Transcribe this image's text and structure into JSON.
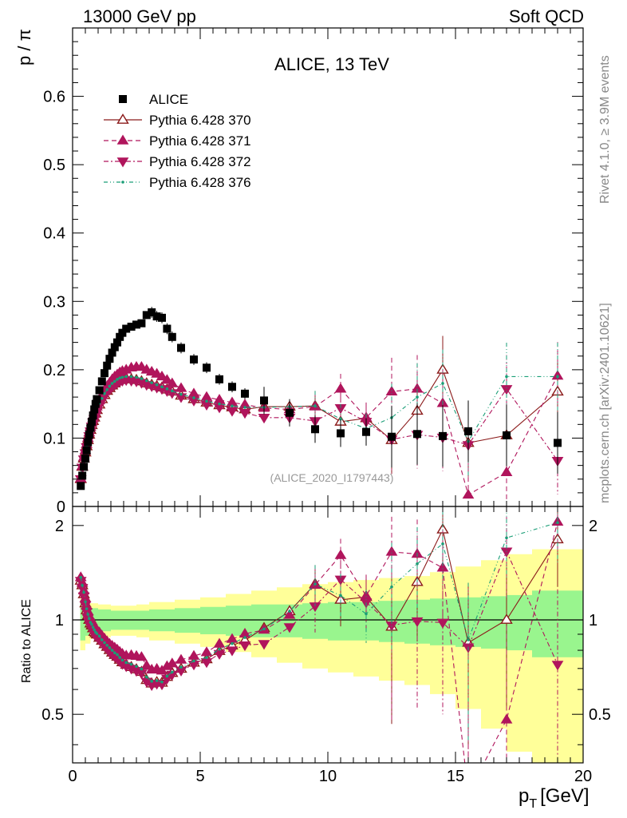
{
  "header": {
    "left": "13000 GeV pp",
    "right": "Soft QCD"
  },
  "side_labels": {
    "upper": "Rivet 4.1.0, ≥ 3.9M events",
    "lower": "mcplots.cern.ch [arXiv:2401.10621]"
  },
  "chart_data": {
    "type": "scatter",
    "title": "ALICE, 13 TeV",
    "analysis_id": "(ALICE_2020_I1797443)",
    "ylabel_top": "p / π",
    "ylabel_bottom": "Ratio to ALICE",
    "xlabel": "p_T [GeV]",
    "xlabel_main": "p",
    "xlabel_sub": "T",
    "xlabel_unit": "[GeV]",
    "xlim": [
      0,
      20
    ],
    "ylim_top": [
      0,
      0.7
    ],
    "ylim_bottom": [
      0.35,
      2.3
    ],
    "x_ticks": [
      "0",
      "5",
      "10",
      "15",
      "20"
    ],
    "y_ticks_top": [
      "0",
      "0.1",
      "0.2",
      "0.3",
      "0.4",
      "0.5",
      "0.6"
    ],
    "y_ticks_bottom": [
      "0.5",
      "1",
      "2"
    ],
    "colors": {
      "data": "#000000",
      "p370": "#8B1A1A",
      "p371": "#B0155C",
      "p372": "#B0155C",
      "p376": "#1A9E77",
      "band_inner": "#99F58E",
      "band_outer": "#FFFF99"
    },
    "x": [
      0.3,
      0.35,
      0.4,
      0.45,
      0.5,
      0.55,
      0.6,
      0.65,
      0.7,
      0.75,
      0.8,
      0.85,
      0.9,
      0.95,
      1.0,
      1.1,
      1.2,
      1.3,
      1.4,
      1.5,
      1.6,
      1.7,
      1.8,
      1.9,
      2.0,
      2.2,
      2.4,
      2.6,
      2.8,
      3.0,
      3.2,
      3.4,
      3.6,
      3.8,
      4.0,
      4.5,
      5.0,
      5.5,
      6.0,
      6.5,
      7.0,
      8.0,
      9.0,
      10.0,
      11.0,
      12.0,
      13.0,
      14.0,
      15.0,
      16.0,
      18.0,
      20.0
    ],
    "data_points": {
      "x": [
        0.32,
        0.38,
        0.44,
        0.5,
        0.55,
        0.6,
        0.65,
        0.7,
        0.75,
        0.8,
        0.85,
        0.9,
        0.95,
        1.05,
        1.15,
        1.25,
        1.35,
        1.45,
        1.55,
        1.65,
        1.75,
        1.85,
        1.95,
        2.1,
        2.3,
        2.5,
        2.7,
        2.9,
        3.1,
        3.3,
        3.5,
        3.7,
        3.9,
        4.25,
        4.75,
        5.25,
        5.75,
        6.25,
        6.75,
        7.5,
        8.5,
        9.5,
        10.5,
        11.5,
        12.5,
        13.5,
        14.5,
        15.5,
        17.0,
        19.0
      ],
      "y": [
        0.03,
        0.045,
        0.058,
        0.07,
        0.082,
        0.094,
        0.105,
        0.115,
        0.124,
        0.133,
        0.142,
        0.15,
        0.157,
        0.17,
        0.183,
        0.195,
        0.206,
        0.216,
        0.225,
        0.233,
        0.24,
        0.248,
        0.254,
        0.26,
        0.263,
        0.266,
        0.268,
        0.28,
        0.284,
        0.278,
        0.276,
        0.26,
        0.248,
        0.232,
        0.215,
        0.203,
        0.186,
        0.175,
        0.165,
        0.155,
        0.137,
        0.113,
        0.107,
        0.109,
        0.102,
        0.106,
        0.103,
        0.11,
        0.104,
        0.093
      ]
    },
    "series": [
      {
        "name": "Pythia 6.428 370",
        "marker": "triangle-up-open",
        "line": "solid",
        "x": [
          0.32,
          0.38,
          0.44,
          0.5,
          0.55,
          0.6,
          0.65,
          0.7,
          0.75,
          0.8,
          0.85,
          0.9,
          0.95,
          1.05,
          1.15,
          1.25,
          1.35,
          1.45,
          1.55,
          1.65,
          1.75,
          1.85,
          1.95,
          2.1,
          2.3,
          2.5,
          2.7,
          2.9,
          3.1,
          3.3,
          3.5,
          3.7,
          3.9,
          4.25,
          4.75,
          5.25,
          5.75,
          6.25,
          6.75,
          7.5,
          8.5,
          9.5,
          10.5,
          11.5,
          12.5,
          13.5,
          14.5,
          15.5,
          17.0,
          19.0
        ],
        "y": [
          0.04,
          0.058,
          0.07,
          0.079,
          0.088,
          0.097,
          0.105,
          0.112,
          0.119,
          0.125,
          0.13,
          0.136,
          0.141,
          0.149,
          0.157,
          0.163,
          0.169,
          0.173,
          0.177,
          0.18,
          0.183,
          0.185,
          0.186,
          0.187,
          0.186,
          0.185,
          0.183,
          0.18,
          0.178,
          0.176,
          0.174,
          0.171,
          0.168,
          0.162,
          0.157,
          0.152,
          0.148,
          0.145,
          0.142,
          0.146,
          0.146,
          0.147,
          0.124,
          0.129,
          0.097,
          0.14,
          0.2,
          0.093,
          0.104,
          0.168
        ]
      },
      {
        "name": "Pythia 6.428 371",
        "marker": "triangle-up",
        "line": "dashed",
        "x": [
          0.32,
          0.38,
          0.44,
          0.5,
          0.55,
          0.6,
          0.65,
          0.7,
          0.75,
          0.8,
          0.85,
          0.9,
          0.95,
          1.05,
          1.15,
          1.25,
          1.35,
          1.45,
          1.55,
          1.65,
          1.75,
          1.85,
          1.95,
          2.1,
          2.3,
          2.5,
          2.7,
          2.9,
          3.1,
          3.3,
          3.5,
          3.7,
          3.9,
          4.25,
          4.75,
          5.25,
          5.75,
          6.25,
          6.75,
          7.5,
          8.5,
          9.5,
          10.5,
          11.5,
          12.5,
          13.5,
          14.5,
          15.5,
          17.0,
          19.0
        ],
        "y": [
          0.041,
          0.059,
          0.072,
          0.082,
          0.091,
          0.1,
          0.108,
          0.116,
          0.123,
          0.129,
          0.135,
          0.141,
          0.146,
          0.155,
          0.163,
          0.17,
          0.176,
          0.181,
          0.186,
          0.19,
          0.193,
          0.196,
          0.198,
          0.2,
          0.203,
          0.204,
          0.204,
          0.2,
          0.197,
          0.194,
          0.19,
          0.185,
          0.18,
          0.173,
          0.165,
          0.16,
          0.156,
          0.152,
          0.149,
          0.144,
          0.142,
          0.146,
          0.172,
          0.13,
          0.168,
          0.172,
          0.151,
          0.017,
          0.05,
          0.191
        ]
      },
      {
        "name": "Pythia 6.428 372",
        "marker": "triangle-down",
        "line": "dashdot",
        "x": [
          0.32,
          0.38,
          0.44,
          0.5,
          0.55,
          0.6,
          0.65,
          0.7,
          0.75,
          0.8,
          0.85,
          0.9,
          0.95,
          1.05,
          1.15,
          1.25,
          1.35,
          1.45,
          1.55,
          1.65,
          1.75,
          1.85,
          1.95,
          2.1,
          2.3,
          2.5,
          2.7,
          2.9,
          3.1,
          3.3,
          3.5,
          3.7,
          3.9,
          4.25,
          4.75,
          5.25,
          5.75,
          6.25,
          6.75,
          7.5,
          8.5,
          9.5,
          10.5,
          11.5,
          12.5,
          13.5,
          14.5,
          15.5,
          17.0,
          19.0
        ],
        "y": [
          0.04,
          0.057,
          0.069,
          0.078,
          0.087,
          0.095,
          0.103,
          0.11,
          0.117,
          0.123,
          0.128,
          0.134,
          0.139,
          0.147,
          0.155,
          0.161,
          0.167,
          0.171,
          0.175,
          0.178,
          0.181,
          0.183,
          0.184,
          0.185,
          0.184,
          0.183,
          0.181,
          0.178,
          0.176,
          0.174,
          0.172,
          0.169,
          0.166,
          0.16,
          0.155,
          0.149,
          0.145,
          0.14,
          0.137,
          0.13,
          0.13,
          0.125,
          0.144,
          0.124,
          0.098,
          0.105,
          0.101,
          0.09,
          0.172,
          0.067
        ]
      },
      {
        "name": "Pythia 6.428 376",
        "marker": "dot",
        "line": "dashdotdot",
        "x": [
          0.32,
          0.38,
          0.44,
          0.5,
          0.55,
          0.6,
          0.65,
          0.7,
          0.75,
          0.8,
          0.85,
          0.9,
          0.95,
          1.05,
          1.15,
          1.25,
          1.35,
          1.45,
          1.55,
          1.65,
          1.75,
          1.85,
          1.95,
          2.1,
          2.3,
          2.5,
          2.7,
          2.9,
          3.1,
          3.3,
          3.5,
          3.7,
          3.9,
          4.25,
          4.75,
          5.25,
          5.75,
          6.25,
          6.75,
          7.5,
          8.5,
          9.5,
          10.5,
          11.5,
          12.5,
          13.5,
          14.5,
          15.5,
          17.0,
          19.0
        ],
        "y": [
          0.041,
          0.058,
          0.071,
          0.08,
          0.089,
          0.098,
          0.106,
          0.113,
          0.12,
          0.126,
          0.132,
          0.137,
          0.142,
          0.151,
          0.158,
          0.165,
          0.171,
          0.176,
          0.18,
          0.183,
          0.186,
          0.188,
          0.189,
          0.19,
          0.19,
          0.189,
          0.187,
          0.184,
          0.181,
          0.178,
          0.175,
          0.172,
          0.169,
          0.164,
          0.159,
          0.154,
          0.15,
          0.147,
          0.145,
          0.145,
          0.146,
          0.147,
          0.128,
          0.114,
          0.13,
          0.16,
          0.18,
          0.095,
          0.19,
          0.19
        ]
      }
    ],
    "band_edges": [
      0.3,
      0.5,
      0.7,
      1.0,
      1.5,
      2.0,
      2.5,
      3.0,
      4.0,
      5.0,
      6.0,
      7.0,
      8.0,
      9.0,
      10.0,
      11.0,
      12.0,
      13.0,
      14.0,
      15.0,
      16.0,
      17.0,
      18.0,
      20.0
    ],
    "band_inner": [
      0.14,
      0.11,
      0.09,
      0.08,
      0.07,
      0.07,
      0.07,
      0.08,
      0.09,
      0.1,
      0.11,
      0.12,
      0.12,
      0.13,
      0.14,
      0.14,
      0.15,
      0.16,
      0.17,
      0.18,
      0.19,
      0.2,
      0.24
    ],
    "band_outer": [
      0.2,
      0.16,
      0.13,
      0.12,
      0.11,
      0.11,
      0.12,
      0.14,
      0.16,
      0.18,
      0.21,
      0.24,
      0.27,
      0.3,
      0.32,
      0.34,
      0.36,
      0.38,
      0.42,
      0.48,
      0.55,
      0.62,
      0.68
    ]
  }
}
